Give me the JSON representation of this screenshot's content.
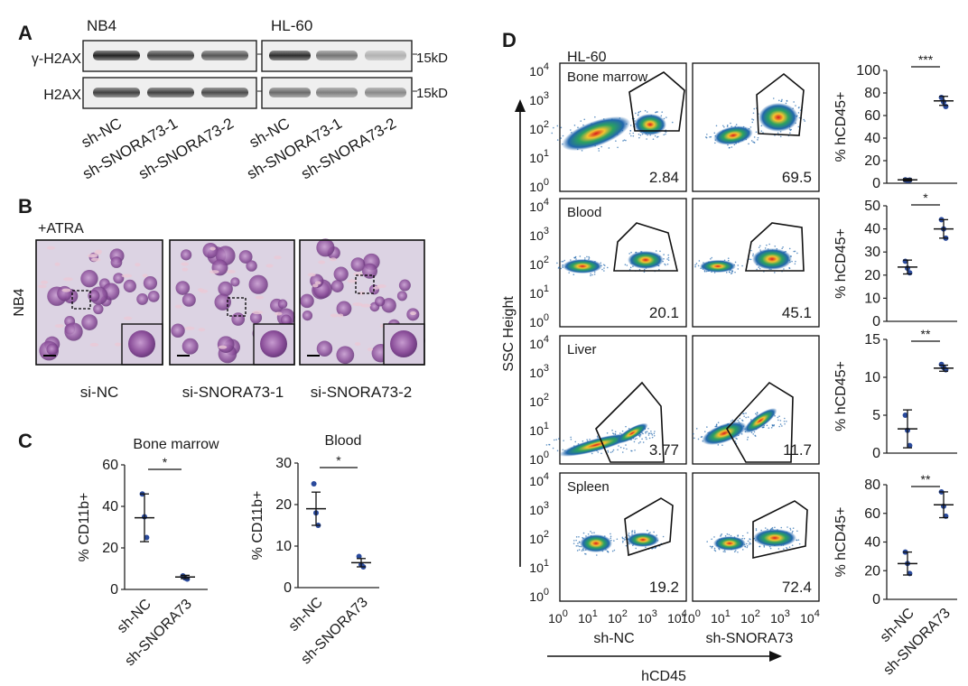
{
  "panel_labels": {
    "a": "A",
    "b": "B",
    "c": "C",
    "d": "D"
  },
  "panel_a": {
    "cell_lines": [
      "NB4",
      "HL-60"
    ],
    "proteins": [
      "γ-H2AX",
      "H2AX"
    ],
    "kd_label": "15kD",
    "lanes": [
      "sh-NC",
      "sh-SNORA73-1",
      "sh-SNORA73-2"
    ],
    "band_intensity": {
      "gamma_h2ax": [
        [
          1.0,
          0.85,
          0.75
        ],
        [
          0.95,
          0.6,
          0.3
        ]
      ],
      "h2ax": [
        [
          0.85,
          0.85,
          0.8
        ],
        [
          0.65,
          0.55,
          0.5
        ]
      ]
    }
  },
  "panel_b": {
    "treatment": "+ATRA",
    "cell_line": "NB4",
    "images": [
      "si-NC",
      "si-SNORA73-1",
      "si-SNORA73-2"
    ]
  },
  "chart_data": [
    {
      "type": "scatter",
      "panel": "C",
      "title": "Bone marrow",
      "ylabel": "% CD11b+",
      "categories": [
        "sh-NC",
        "sh-SNORA73"
      ],
      "ylim": [
        0,
        60
      ],
      "yticks": [
        0,
        20,
        40,
        60
      ],
      "points": [
        [
          46,
          35,
          25
        ],
        [
          6.5,
          5.5,
          5
        ]
      ],
      "mean": [
        34.5,
        6
      ],
      "error": [
        11.5,
        0.8
      ],
      "significance": "*"
    },
    {
      "type": "scatter",
      "panel": "C",
      "title": "Blood",
      "ylabel": "% CD11b+",
      "categories": [
        "sh-NC",
        "sh-SNORA73"
      ],
      "ylim": [
        0,
        30
      ],
      "yticks": [
        0,
        10,
        20,
        30
      ],
      "points": [
        [
          25,
          18,
          15
        ],
        [
          7.5,
          5.5,
          5
        ]
      ],
      "mean": [
        19,
        6
      ],
      "error": [
        4,
        1
      ],
      "significance": "*"
    },
    {
      "type": "scatter",
      "panel": "D",
      "tissue": "Bone marrow",
      "ylabel": "% hCD45+",
      "categories": [
        "sh-NC",
        "sh-SNORA73"
      ],
      "ylim": [
        0,
        100
      ],
      "yticks": [
        0,
        20,
        40,
        60,
        80,
        100
      ],
      "points": [
        [
          3,
          2.5,
          2.8
        ],
        [
          76,
          72,
          68
        ]
      ],
      "mean": [
        3,
        73
      ],
      "error": [
        1,
        4
      ],
      "significance": "***"
    },
    {
      "type": "scatter",
      "panel": "D",
      "tissue": "Blood",
      "ylabel": "% hCD45+",
      "categories": [
        "sh-NC",
        "sh-SNORA73"
      ],
      "ylim": [
        0,
        50
      ],
      "yticks": [
        0,
        10,
        20,
        30,
        40,
        50
      ],
      "points": [
        [
          26,
          23,
          21
        ],
        [
          44,
          40,
          36
        ]
      ],
      "mean": [
        23.5,
        40
      ],
      "error": [
        3,
        4
      ],
      "significance": "*"
    },
    {
      "type": "scatter",
      "panel": "D",
      "tissue": "Liver",
      "ylabel": "% hCD45+",
      "categories": [
        "sh-NC",
        "sh-SNORA73"
      ],
      "ylim": [
        0,
        15
      ],
      "yticks": [
        0,
        5,
        10,
        15
      ],
      "points": [
        [
          5,
          3,
          1
        ],
        [
          11.7,
          11.3,
          11
        ]
      ],
      "mean": [
        3.2,
        11.2
      ],
      "error": [
        2.5,
        0.4
      ],
      "significance": "**"
    },
    {
      "type": "scatter",
      "panel": "D",
      "tissue": "Spleen",
      "ylabel": "% hCD45+",
      "categories": [
        "sh-NC",
        "sh-SNORA73"
      ],
      "ylim": [
        0,
        80
      ],
      "yticks": [
        0,
        20,
        40,
        60,
        80
      ],
      "points": [
        [
          33,
          25,
          18
        ],
        [
          75,
          65,
          58
        ]
      ],
      "mean": [
        25,
        66
      ],
      "error": [
        8,
        9
      ],
      "significance": "**"
    }
  ],
  "panel_d": {
    "cell_line": "HL-60",
    "y_axis_label": "SSC Height",
    "x_axis_label": "hCD45",
    "groups": [
      "sh-NC",
      "sh-SNORA73"
    ],
    "tissues": [
      "Bone marrow",
      "Blood",
      "Liver",
      "Spleen"
    ],
    "gate_values": [
      [
        "2.84",
        "69.5"
      ],
      [
        "20.1",
        "45.1"
      ],
      [
        "3.77",
        "11.7"
      ],
      [
        "19.2",
        "72.4"
      ]
    ],
    "tick_base": "10",
    "tick_exponents": [
      "0",
      "1",
      "2",
      "3",
      "4"
    ]
  }
}
